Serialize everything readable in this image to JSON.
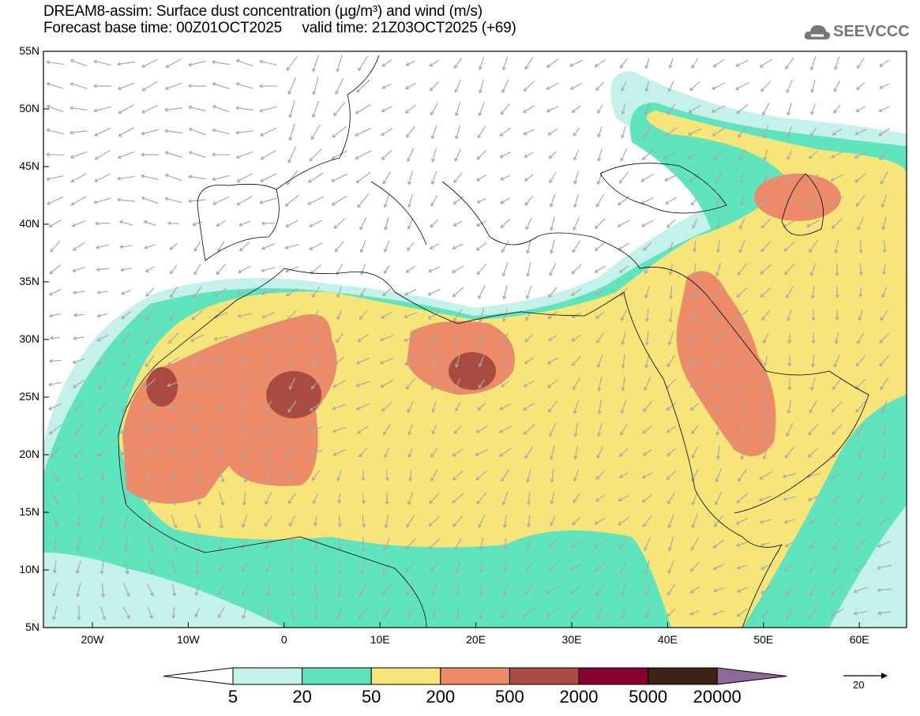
{
  "header": {
    "title": "DREAM8-assim: Surface dust concentration (µg/m³) and wind (m/s)",
    "subtitle": "Forecast base time: 00Z01OCT2025     valid time: 21Z03OCT2025 (+69)",
    "logo_text": "SEEVCCC"
  },
  "axes": {
    "lat_labels": [
      "55N",
      "50N",
      "45N",
      "40N",
      "35N",
      "30N",
      "25N",
      "20N",
      "15N",
      "10N",
      "5N"
    ],
    "lon_labels": [
      "20W",
      "10W",
      "0",
      "10E",
      "20E",
      "30E",
      "40E",
      "50E",
      "60E"
    ]
  },
  "colorbar": {
    "labels": [
      "5",
      "20",
      "50",
      "200",
      "500",
      "2000",
      "5000",
      "20000"
    ],
    "colors": [
      "#c4f2ea",
      "#5fe4bd",
      "#f7e57a",
      "#eb8b6a",
      "#a94b40",
      "#860330",
      "#3c2414",
      "#8e6a9c"
    ],
    "wind_reference": "20"
  }
}
